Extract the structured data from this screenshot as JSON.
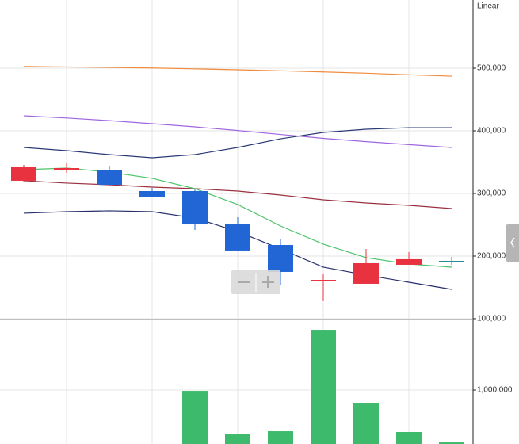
{
  "chart_data": [
    {
      "type": "candlestick",
      "scale_label": "Linear",
      "open": [
        320300,
        338000,
        336700,
        303800,
        303800,
        250600,
        217700,
        159500,
        155700,
        186100,
        192400
      ],
      "high": [
        345600,
        349400,
        343000,
        308900,
        307600,
        262000,
        226600,
        170900,
        211400,
        206300,
        198700
      ],
      "low": [
        319000,
        332900,
        311400,
        293700,
        241800,
        208900,
        153200,
        127900,
        155700,
        186100,
        186100
      ],
      "close": [
        341800,
        340500,
        313900,
        293700,
        250600,
        208900,
        174700,
        162000,
        188600,
        195000,
        192400
      ],
      "up_color": "#e8323f",
      "down_color": "#2166d4",
      "flat_color": "#2a8a9a",
      "series": [
        {
          "color": "#f08a3c",
          "values": [
            502800,
            502000,
            501200,
            500300,
            499000,
            497500,
            495800,
            494000,
            492000,
            489500,
            487300
          ]
        },
        {
          "color": "#a066e0",
          "values": [
            424100,
            420500,
            416300,
            411400,
            406300,
            400500,
            394200,
            388000,
            382800,
            378000,
            373400
          ]
        },
        {
          "color": "#2b3a75",
          "values": [
            373400,
            368400,
            362000,
            357000,
            362000,
            373400,
            387300,
            397500,
            402500,
            405000,
            405000
          ]
        },
        {
          "color": "#9b3040",
          "values": [
            320300,
            316500,
            313900,
            310100,
            307600,
            303800,
            297500,
            289900,
            284800,
            281000,
            275900
          ]
        },
        {
          "color": "#4cc46a",
          "values": [
            338000,
            340500,
            334200,
            324100,
            307600,
            282300,
            248100,
            219000,
            197500,
            187300,
            182300
          ]
        },
        {
          "color": "#27306a",
          "values": [
            268400,
            270900,
            272200,
            270900,
            260800,
            239200,
            211400,
            182300,
            169700,
            158200,
            146800
          ]
        }
      ],
      "ylim": [
        98700,
        608900
      ],
      "yticks": [
        {
          "value": 100000,
          "label": "100,000"
        },
        {
          "value": 200000,
          "label": "200,000"
        },
        {
          "value": 300000,
          "label": "300,000"
        },
        {
          "value": 400000,
          "label": "400,000"
        },
        {
          "value": 500000,
          "label": "500,000"
        }
      ],
      "grid": true
    },
    {
      "type": "bar",
      "values": [
        null,
        null,
        null,
        null,
        985000,
        176000,
        235000,
        2118000,
        765000,
        221000,
        29000
      ],
      "color": "#3dba6b",
      "ylim": [
        0,
        2310000
      ],
      "yticks": [
        {
          "value": 1000000,
          "label": "1,000,000"
        }
      ],
      "grid": true
    }
  ]
}
